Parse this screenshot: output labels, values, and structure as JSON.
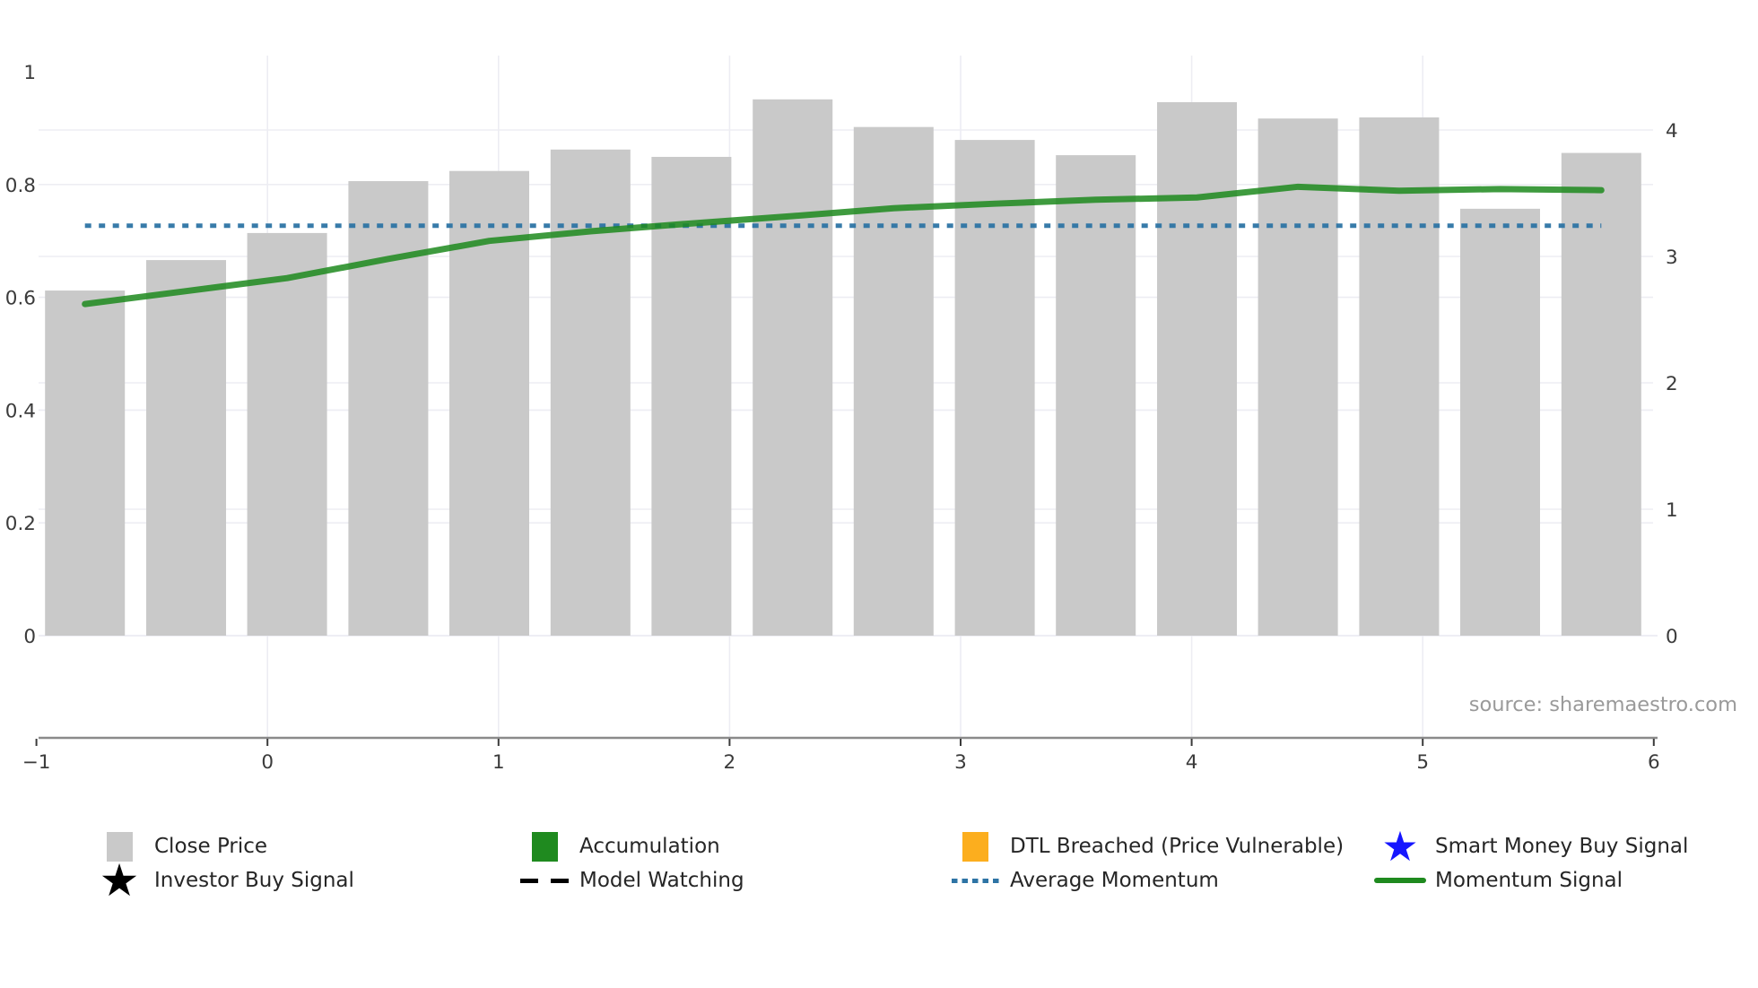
{
  "chart_data": {
    "type": "bar",
    "title": "",
    "x": [
      -0.79,
      -0.352,
      0.085,
      0.523,
      0.96,
      1.398,
      1.835,
      2.273,
      2.71,
      3.148,
      3.585,
      4.023,
      4.46,
      4.898,
      5.335,
      5.773
    ],
    "series": [
      {
        "name": "Close Price",
        "type": "bar",
        "axis": "left",
        "color": "#c9c9c9",
        "values": [
          0.612,
          0.666,
          0.714,
          0.806,
          0.824,
          0.862,
          0.849,
          0.951,
          0.902,
          0.879,
          0.852,
          0.946,
          0.917,
          0.919,
          0.757,
          0.856
        ]
      },
      {
        "name": "Momentum Signal",
        "type": "line",
        "axis": "left",
        "color": "#1d8a1d",
        "values": [
          0.588,
          0.611,
          0.634,
          0.668,
          0.7,
          0.717,
          0.731,
          0.744,
          0.758,
          0.766,
          0.773,
          0.777,
          0.796,
          0.789,
          0.792,
          0.79
        ]
      },
      {
        "name": "Average Momentum",
        "type": "hline",
        "axis": "left",
        "color": "#2e74a5",
        "style": "dotted",
        "value": 0.727
      }
    ],
    "x_axis": {
      "ticks": [
        -1,
        0,
        1,
        2,
        3,
        4,
        5,
        6
      ],
      "labels": [
        "−1",
        "0",
        "1",
        "2",
        "3",
        "4",
        "5",
        "6"
      ],
      "grid_ticks": [
        0,
        1,
        2,
        3,
        4,
        5
      ]
    },
    "left_axis": {
      "ticks": [
        1,
        0.8,
        0.6,
        0.4,
        0.2,
        0
      ],
      "labels": [
        "1",
        "0.8",
        "0.6",
        "0.4",
        "0.2",
        "0"
      ],
      "grid_ticks": [
        0.8,
        0.6,
        0.4,
        0.2
      ],
      "range": [
        -0.18,
        1.03
      ]
    },
    "right_axis": {
      "ticks": [
        4,
        3,
        2,
        1,
        0
      ],
      "labels": [
        "4",
        "3",
        "2",
        "1",
        "0"
      ],
      "grid_ticks": [
        4,
        3,
        2,
        1
      ],
      "range": [
        -0.81,
        4.6
      ]
    },
    "grid": true,
    "legend_position": "bottom"
  },
  "legend": {
    "items": [
      {
        "label": "Close Price",
        "swatch": "square-gray"
      },
      {
        "label": "Accumulation",
        "swatch": "square-green"
      },
      {
        "label": "DTL Breached (Price Vulnerable)",
        "swatch": "square-orange"
      },
      {
        "label": "Smart Money Buy Signal",
        "swatch": "star-blue"
      },
      {
        "label": "Investor Buy Signal",
        "swatch": "star-black"
      },
      {
        "label": "Model Watching",
        "swatch": "dash-black"
      },
      {
        "label": "Average Momentum",
        "swatch": "dotted-blue"
      },
      {
        "label": "Momentum Signal",
        "swatch": "line-green"
      }
    ]
  },
  "source": {
    "text": "source: sharemaestro.com"
  },
  "colors": {
    "bar": "#c9c9c9",
    "momentum_line": "#1d8a1d",
    "average_momentum_line": "#2e74a5",
    "accumulation": "#1f8a1f",
    "dtl_breached": "#fcae1e",
    "smart_money_star": "#1616ff",
    "investor_star": "#000000",
    "gridline": "#ededf3",
    "axis_line": "#8a8a8a",
    "tick_text": "#3b3b3b",
    "source_text": "#9a9a9a"
  }
}
